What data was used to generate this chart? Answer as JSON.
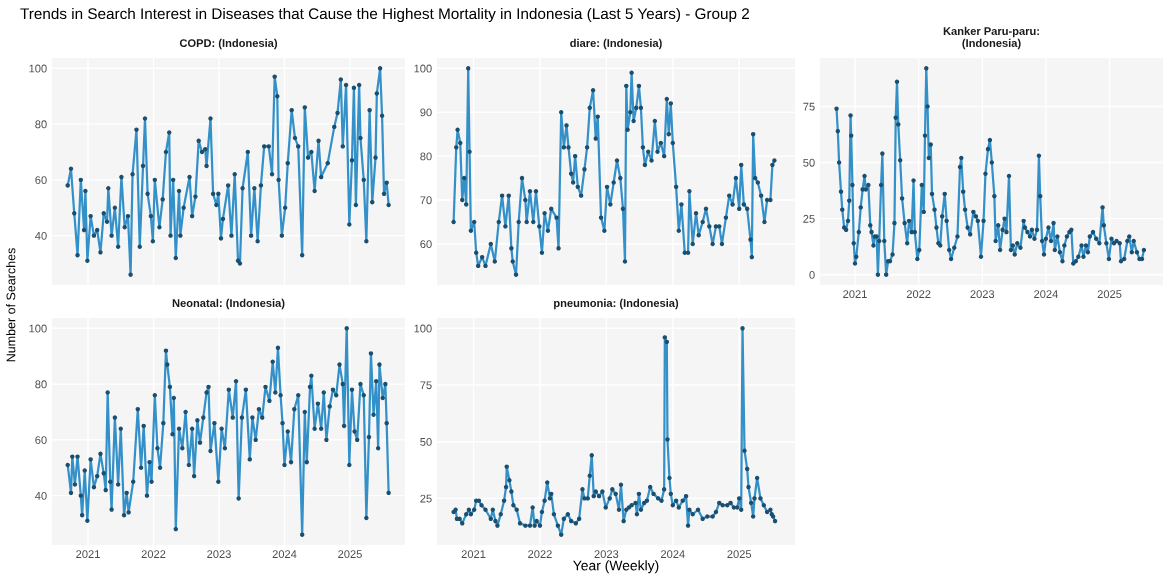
{
  "chart_data": [
    {
      "type": "line",
      "title": "COPD: (Indonesia)",
      "annotations": [
        "Trends in Search Interest in Diseases that Cause the Highest Mortality in Indonesia (Last 5 Years) - Group 2"
      ],
      "tick_labels": "y",
      "grid": true,
      "marker": "circle",
      "xlim": [
        2020.45,
        2025.84
      ],
      "xticks": [
        2021,
        2022,
        2023,
        2024,
        2025
      ],
      "ylim": [
        22.3,
        103.7
      ],
      "yticks": [
        40,
        60,
        80,
        100
      ],
      "series": [
        {
          "color": "#3390c8",
          "x": [
            2020.69,
            2020.74,
            2020.79,
            2020.84,
            2020.89,
            2020.94,
            2020.96,
            2020.99,
            2021.04,
            2021.09,
            2021.14,
            2021.19,
            2021.24,
            2021.29,
            2021.31,
            2021.36,
            2021.41,
            2021.46,
            2021.51,
            2021.56,
            2021.61,
            2021.65,
            2021.68,
            2021.74,
            2021.79,
            2021.84,
            2021.87,
            2021.91,
            2021.96,
            2021.99,
            2022.02,
            2022.09,
            2022.14,
            2022.19,
            2022.24,
            2022.26,
            2022.3,
            2022.34,
            2022.39,
            2022.41,
            2022.46,
            2022.55,
            2022.59,
            2022.64,
            2022.69,
            2022.74,
            2022.79,
            2022.81,
            2022.87,
            2022.91,
            2022.96,
            2022.99,
            2023.03,
            2023.06,
            2023.14,
            2023.19,
            2023.24,
            2023.29,
            2023.32,
            2023.36,
            2023.44,
            2023.49,
            2023.54,
            2023.59,
            2023.64,
            2023.69,
            2023.76,
            2023.81,
            2023.85,
            2023.89,
            2023.91,
            2023.96,
            2024.01,
            2024.05,
            2024.11,
            2024.16,
            2024.21,
            2024.27,
            2024.31,
            2024.36,
            2024.41,
            2024.46,
            2024.52,
            2024.56,
            2024.66,
            2024.76,
            2024.81,
            2024.86,
            2024.89,
            2024.94,
            2024.99,
            2025.03,
            2025.06,
            2025.09,
            2025.14,
            2025.16,
            2025.21,
            2025.25,
            2025.3,
            2025.34,
            2025.39,
            2025.41,
            2025.46,
            2025.49,
            2025.52,
            2025.56,
            2025.59
          ],
          "values": [
            58,
            64,
            48,
            33,
            60,
            42,
            56,
            31,
            47,
            40,
            42,
            34,
            48,
            45,
            57,
            40,
            50,
            36,
            61,
            43,
            47,
            26,
            62,
            78,
            36,
            65,
            82,
            55,
            47,
            38,
            60,
            43,
            53,
            70,
            77,
            40,
            60,
            32,
            56,
            40,
            50,
            61,
            47,
            54,
            74,
            70,
            71,
            65,
            82,
            55,
            51,
            55,
            39,
            46,
            58,
            40,
            62,
            31,
            30,
            57,
            70,
            40,
            57,
            38,
            58,
            72,
            72,
            62,
            97,
            90,
            60,
            40,
            50,
            66,
            85,
            75,
            72,
            33,
            86,
            68,
            70,
            56,
            74,
            61,
            66,
            79,
            84,
            96,
            72,
            94,
            44,
            67,
            93,
            51,
            94,
            75,
            60,
            38,
            85,
            52,
            68,
            91,
            100,
            83,
            55,
            59,
            51
          ]
        }
      ]
    },
    {
      "type": "line",
      "title": "diare: (Indonesia)",
      "tick_labels": "y",
      "grid": true,
      "marker": "circle",
      "xlim": [
        2020.45,
        2025.84
      ],
      "xticks": [
        2021,
        2022,
        2023,
        2024,
        2025
      ],
      "ylim": [
        50.65,
        102.35
      ],
      "yticks": [
        60,
        70,
        80,
        90,
        100
      ],
      "series": [
        {
          "color": "#3390c8",
          "x": [
            2020.7,
            2020.74,
            2020.76,
            2020.8,
            2020.83,
            2020.86,
            2020.89,
            2020.92,
            2020.94,
            2020.96,
            2021.01,
            2021.04,
            2021.07,
            2021.13,
            2021.18,
            2021.26,
            2021.32,
            2021.38,
            2021.43,
            2021.48,
            2021.53,
            2021.57,
            2021.59,
            2021.64,
            2021.68,
            2021.73,
            2021.78,
            2021.8,
            2021.85,
            2021.9,
            2021.94,
            2021.99,
            2022.03,
            2022.07,
            2022.12,
            2022.17,
            2022.25,
            2022.28,
            2022.32,
            2022.36,
            2022.4,
            2022.43,
            2022.47,
            2022.5,
            2022.53,
            2022.57,
            2022.62,
            2022.67,
            2022.71,
            2022.75,
            2022.8,
            2022.84,
            2022.87,
            2022.92,
            2022.97,
            2023.01,
            2023.06,
            2023.11,
            2023.16,
            2023.21,
            2023.25,
            2023.28,
            2023.3,
            2023.32,
            2023.36,
            2023.38,
            2023.41,
            2023.45,
            2023.49,
            2023.52,
            2023.55,
            2023.58,
            2023.63,
            2023.68,
            2023.73,
            2023.77,
            2023.82,
            2023.87,
            2023.91,
            2023.94,
            2023.97,
            2024.0,
            2024.05,
            2024.09,
            2024.13,
            2024.18,
            2024.23,
            2024.25,
            2024.3,
            2024.35,
            2024.39,
            2024.45,
            2024.5,
            2024.55,
            2024.6,
            2024.65,
            2024.7,
            2024.74,
            2024.8,
            2024.85,
            2024.9,
            2024.95,
            2025.0,
            2025.03,
            2025.07,
            2025.12,
            2025.17,
            2025.19,
            2025.21,
            2025.24,
            2025.28,
            2025.33,
            2025.38,
            2025.42,
            2025.47,
            2025.5,
            2025.53
          ],
          "values": [
            65,
            82,
            86,
            83,
            70,
            75,
            69,
            100,
            81,
            63,
            65,
            58,
            55,
            57,
            55,
            60,
            56,
            65,
            71,
            64,
            71,
            59,
            56,
            53,
            65,
            75,
            70,
            65,
            72,
            65,
            72,
            64,
            58,
            67,
            63,
            68,
            66,
            59,
            90,
            82,
            87,
            82,
            76,
            74,
            80,
            73,
            71,
            77,
            82,
            91,
            95,
            84,
            89,
            66,
            63,
            73,
            69,
            74,
            79,
            75,
            68,
            56,
            96,
            86,
            90,
            99,
            88,
            91,
            96,
            91,
            82,
            78,
            81,
            79,
            88,
            81,
            83,
            80,
            93,
            85,
            92,
            83,
            73,
            63,
            69,
            58,
            58,
            72,
            60,
            67,
            62,
            65,
            68,
            64,
            60,
            64,
            64,
            60,
            66,
            71,
            69,
            75,
            68,
            78,
            69,
            68,
            61,
            57,
            85,
            75,
            74,
            71,
            65,
            70,
            70,
            78,
            79
          ]
        }
      ]
    },
    {
      "type": "line",
      "title": "Kanker Paru-paru:\n(Indonesia)",
      "grid": true,
      "marker": "circle",
      "xlim": [
        2020.45,
        2025.84
      ],
      "xticks": [
        2021,
        2022,
        2023,
        2024,
        2025
      ],
      "ylim": [
        -4.6,
        96.6
      ],
      "yticks": [
        0,
        25,
        50,
        75
      ],
      "series": [
        {
          "color": "#3390c8",
          "x": [
            2020.71,
            2020.73,
            2020.75,
            2020.78,
            2020.8,
            2020.83,
            2020.86,
            2020.89,
            2020.91,
            2020.93,
            2020.94,
            2020.96,
            2020.98,
            2021.0,
            2021.02,
            2021.06,
            2021.09,
            2021.12,
            2021.15,
            2021.17,
            2021.21,
            2021.24,
            2021.26,
            2021.29,
            2021.31,
            2021.34,
            2021.36,
            2021.38,
            2021.41,
            2021.43,
            2021.46,
            2021.49,
            2021.52,
            2021.55,
            2021.59,
            2021.62,
            2021.64,
            2021.66,
            2021.68,
            2021.71,
            2021.74,
            2021.78,
            2021.82,
            2021.85,
            2021.89,
            2021.92,
            2021.94,
            2021.98,
            2022.01,
            2022.05,
            2022.08,
            2022.1,
            2022.12,
            2022.14,
            2022.16,
            2022.19,
            2022.21,
            2022.25,
            2022.28,
            2022.31,
            2022.34,
            2022.37,
            2022.41,
            2022.44,
            2022.48,
            2022.51,
            2022.56,
            2022.61,
            2022.65,
            2022.67,
            2022.7,
            2022.73,
            2022.77,
            2022.81,
            2022.86,
            2022.9,
            2022.93,
            2022.98,
            2023.02,
            2023.05,
            2023.09,
            2023.12,
            2023.15,
            2023.19,
            2023.21,
            2023.25,
            2023.28,
            2023.32,
            2023.35,
            2023.38,
            2023.42,
            2023.45,
            2023.48,
            2023.51,
            2023.55,
            2023.6,
            2023.65,
            2023.67,
            2023.71,
            2023.75,
            2023.78,
            2023.82,
            2023.86,
            2023.89,
            2023.91,
            2023.94,
            2023.97,
            2024.0,
            2024.04,
            2024.08,
            2024.12,
            2024.14,
            2024.18,
            2024.22,
            2024.26,
            2024.29,
            2024.33,
            2024.37,
            2024.4,
            2024.43,
            2024.47,
            2024.51,
            2024.56,
            2024.59,
            2024.63,
            2024.66,
            2024.69,
            2024.74,
            2024.79,
            2024.84,
            2024.89,
            2024.91,
            2024.95,
            2024.99,
            2025.03,
            2025.07,
            2025.11,
            2025.16,
            2025.18,
            2025.23,
            2025.28,
            2025.31,
            2025.35,
            2025.38,
            2025.43,
            2025.47,
            2025.51,
            2025.54
          ],
          "values": [
            74,
            64,
            50,
            37,
            29,
            21,
            20,
            24,
            33,
            71,
            62,
            40,
            14,
            5,
            8,
            19,
            30,
            38,
            44,
            38,
            40,
            22,
            19,
            13,
            17,
            17,
            0,
            15,
            40,
            54,
            15,
            0,
            6,
            6,
            9,
            23,
            70,
            86,
            67,
            51,
            34,
            23,
            14,
            24,
            19,
            42,
            19,
            7,
            11,
            40,
            28,
            62,
            92,
            75,
            52,
            58,
            36,
            29,
            21,
            14,
            13,
            26,
            36,
            24,
            11,
            7,
            12,
            17,
            48,
            52,
            37,
            29,
            21,
            18,
            28,
            26,
            24,
            8,
            24,
            45,
            56,
            60,
            50,
            35,
            15,
            22,
            11,
            20,
            25,
            19,
            44,
            11,
            13,
            9,
            14,
            12,
            24,
            21,
            19,
            17,
            20,
            16,
            20,
            53,
            35,
            15,
            9,
            16,
            21,
            15,
            23,
            11,
            17,
            10,
            6,
            13,
            17,
            19,
            20,
            5,
            6,
            8,
            13,
            8,
            13,
            10,
            17,
            19,
            16,
            14,
            30,
            22,
            14,
            7,
            16,
            14,
            15,
            14,
            6,
            7,
            15,
            17,
            10,
            15,
            10,
            7,
            7,
            11
          ]
        }
      ]
    },
    {
      "type": "line",
      "title": "Neonatal: (Indonesia)",
      "ylabel": "Number of Searches",
      "grid": true,
      "marker": "circle",
      "xlim": [
        2020.45,
        2025.84
      ],
      "xticks": [
        2021,
        2022,
        2023,
        2024,
        2025
      ],
      "ylim": [
        22.3,
        103.7
      ],
      "yticks": [
        40,
        60,
        80,
        100
      ],
      "series": [
        {
          "color": "#3390c8",
          "x": [
            2020.69,
            2020.74,
            2020.76,
            2020.8,
            2020.84,
            2020.89,
            2020.91,
            2020.95,
            2020.99,
            2021.04,
            2021.09,
            2021.14,
            2021.19,
            2021.24,
            2021.27,
            2021.3,
            2021.34,
            2021.36,
            2021.41,
            2021.46,
            2021.5,
            2021.55,
            2021.59,
            2021.62,
            2021.69,
            2021.76,
            2021.81,
            2021.85,
            2021.9,
            2021.94,
            2021.97,
            2022.02,
            2022.06,
            2022.1,
            2022.15,
            2022.19,
            2022.21,
            2022.25,
            2022.29,
            2022.31,
            2022.34,
            2022.39,
            2022.44,
            2022.49,
            2022.54,
            2022.59,
            2022.62,
            2022.67,
            2022.71,
            2022.76,
            2022.81,
            2022.84,
            2022.87,
            2022.93,
            2022.99,
            2023.04,
            2023.09,
            2023.15,
            2023.21,
            2023.26,
            2023.3,
            2023.35,
            2023.41,
            2023.47,
            2023.51,
            2023.56,
            2023.61,
            2023.66,
            2023.71,
            2023.77,
            2023.82,
            2023.86,
            2023.9,
            2023.94,
            2023.97,
            2024.0,
            2024.05,
            2024.1,
            2024.15,
            2024.21,
            2024.27,
            2024.31,
            2024.34,
            2024.39,
            2024.41,
            2024.46,
            2024.51,
            2024.56,
            2024.6,
            2024.64,
            2024.69,
            2024.74,
            2024.79,
            2024.84,
            2024.89,
            2024.91,
            2024.95,
            2024.99,
            2025.03,
            2025.07,
            2025.11,
            2025.16,
            2025.21,
            2025.25,
            2025.29,
            2025.32,
            2025.36,
            2025.4,
            2025.43,
            2025.45,
            2025.5,
            2025.54,
            2025.56,
            2025.59
          ],
          "values": [
            51,
            41,
            54,
            44,
            54,
            40,
            33,
            49,
            31,
            53,
            43,
            47,
            55,
            48,
            42,
            77,
            45,
            35,
            68,
            44,
            64,
            33,
            41,
            34,
            45,
            71,
            50,
            65,
            40,
            52,
            45,
            76,
            57,
            50,
            66,
            92,
            87,
            79,
            62,
            75,
            28,
            64,
            57,
            70,
            51,
            64,
            47,
            67,
            59,
            68,
            77,
            79,
            56,
            66,
            45,
            64,
            57,
            78,
            68,
            81,
            39,
            68,
            78,
            53,
            68,
            60,
            71,
            68,
            79,
            74,
            88,
            77,
            93,
            76,
            66,
            51,
            63,
            52,
            71,
            76,
            26,
            70,
            52,
            79,
            83,
            64,
            73,
            64,
            77,
            60,
            72,
            78,
            76,
            87,
            80,
            65,
            100,
            51,
            78,
            63,
            60,
            80,
            76,
            32,
            61,
            91,
            69,
            81,
            57,
            87,
            75,
            80,
            66,
            41
          ]
        }
      ]
    },
    {
      "type": "line",
      "title": "pneumonia: (Indonesia)",
      "xlabel": "Year (Weekly)",
      "grid": true,
      "marker": "circle",
      "xlim": [
        2020.45,
        2025.84
      ],
      "xticks": [
        2021,
        2022,
        2023,
        2024,
        2025
      ],
      "ylim": [
        4.45,
        104.55
      ],
      "yticks": [
        25,
        50,
        75,
        100
      ],
      "series": [
        {
          "color": "#3390c8",
          "x": [
            2020.7,
            2020.73,
            2020.75,
            2020.79,
            2020.83,
            2020.89,
            2020.93,
            2020.96,
            2021.01,
            2021.04,
            2021.08,
            2021.12,
            2021.18,
            2021.26,
            2021.29,
            2021.33,
            2021.36,
            2021.41,
            2021.46,
            2021.49,
            2021.5,
            2021.54,
            2021.57,
            2021.6,
            2021.65,
            2021.7,
            2021.78,
            2021.85,
            2021.89,
            2021.92,
            2021.95,
            2022.0,
            2022.03,
            2022.07,
            2022.11,
            2022.15,
            2022.17,
            2022.21,
            2022.27,
            2022.32,
            2022.36,
            2022.42,
            2022.47,
            2022.54,
            2022.59,
            2022.64,
            2022.67,
            2022.72,
            2022.75,
            2022.78,
            2022.81,
            2022.84,
            2022.89,
            2022.94,
            2022.99,
            2023.05,
            2023.09,
            2023.14,
            2023.19,
            2023.22,
            2023.26,
            2023.3,
            2023.34,
            2023.38,
            2023.44,
            2023.46,
            2023.49,
            2023.52,
            2023.57,
            2023.61,
            2023.66,
            2023.71,
            2023.78,
            2023.83,
            2023.87,
            2023.88,
            2023.91,
            2023.92,
            2023.95,
            2023.97,
            2024.0,
            2024.05,
            2024.09,
            2024.15,
            2024.2,
            2024.23,
            2024.25,
            2024.3,
            2024.38,
            2024.45,
            2024.52,
            2024.6,
            2024.65,
            2024.7,
            2024.75,
            2024.82,
            2024.87,
            2024.92,
            2024.97,
            2025.0,
            2025.03,
            2025.05,
            2025.08,
            2025.12,
            2025.14,
            2025.18,
            2025.21,
            2025.23,
            2025.27,
            2025.32,
            2025.37,
            2025.42,
            2025.47,
            2025.49,
            2025.51,
            2025.54
          ],
          "values": [
            19,
            20,
            16,
            16,
            14,
            18,
            20,
            18,
            20,
            24,
            24,
            22,
            20,
            16,
            20,
            15,
            13,
            18,
            24,
            30,
            39,
            33,
            28,
            22,
            20,
            14,
            13,
            13,
            21,
            13,
            15,
            13,
            19,
            24,
            32,
            25,
            27,
            18,
            13,
            9,
            16,
            18,
            15,
            14,
            16,
            29,
            25,
            25,
            35,
            44,
            26,
            28,
            26,
            28,
            21,
            25,
            29,
            27,
            20,
            31,
            15,
            20,
            21,
            22,
            23,
            18,
            27,
            20,
            23,
            24,
            30,
            27,
            25,
            24,
            29,
            96,
            94,
            51,
            34,
            27,
            22,
            24,
            21,
            24,
            26,
            13,
            20,
            18,
            20,
            16,
            17,
            17,
            19,
            23,
            22,
            22,
            23,
            21,
            21,
            25,
            20,
            100,
            46,
            38,
            30,
            23,
            17,
            25,
            34,
            25,
            22,
            19,
            20,
            18,
            17,
            15
          ]
        }
      ]
    }
  ]
}
